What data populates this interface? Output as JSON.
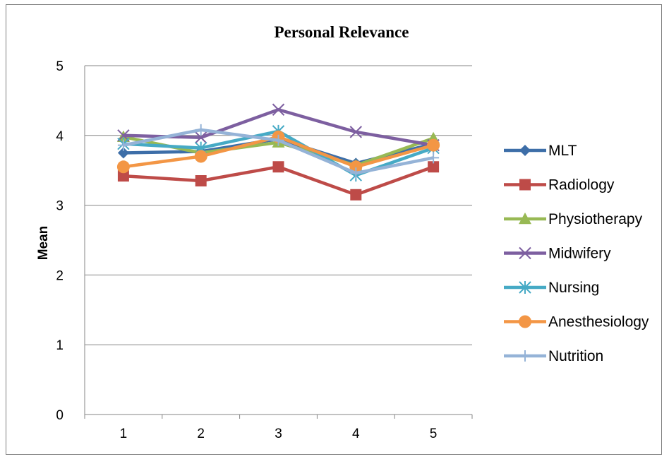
{
  "chart_data": {
    "type": "line",
    "title": "Personal Relevance",
    "xlabel": "",
    "ylabel": "Mean",
    "x": [
      1,
      2,
      3,
      4,
      5
    ],
    "ylim": [
      0,
      5
    ],
    "yticks": [
      0,
      1,
      2,
      3,
      4,
      5
    ],
    "grid": true,
    "legend_position": "right",
    "series": [
      {
        "name": "MLT",
        "color": "#3d6ea8",
        "marker": "diamond",
        "values": [
          3.75,
          3.77,
          3.95,
          3.6,
          3.88
        ]
      },
      {
        "name": "Radiology",
        "color": "#be4b48",
        "marker": "square",
        "values": [
          3.42,
          3.35,
          3.55,
          3.15,
          3.55
        ]
      },
      {
        "name": "Physiotherapy",
        "color": "#98b954",
        "marker": "triangle",
        "values": [
          3.98,
          3.75,
          3.9,
          3.57,
          3.96
        ]
      },
      {
        "name": "Midwifery",
        "color": "#7d5fa0",
        "marker": "x",
        "values": [
          4.0,
          3.97,
          4.37,
          4.05,
          3.86
        ]
      },
      {
        "name": "Nursing",
        "color": "#46aac5",
        "marker": "asterisk",
        "values": [
          3.88,
          3.82,
          4.06,
          3.43,
          3.82
        ]
      },
      {
        "name": "Anesthesiology",
        "color": "#f39645",
        "marker": "circle",
        "values": [
          3.55,
          3.7,
          3.98,
          3.55,
          3.86
        ]
      },
      {
        "name": "Nutrition",
        "color": "#95b3d7",
        "marker": "plus",
        "values": [
          3.86,
          4.08,
          3.93,
          3.46,
          3.68
        ]
      }
    ]
  }
}
